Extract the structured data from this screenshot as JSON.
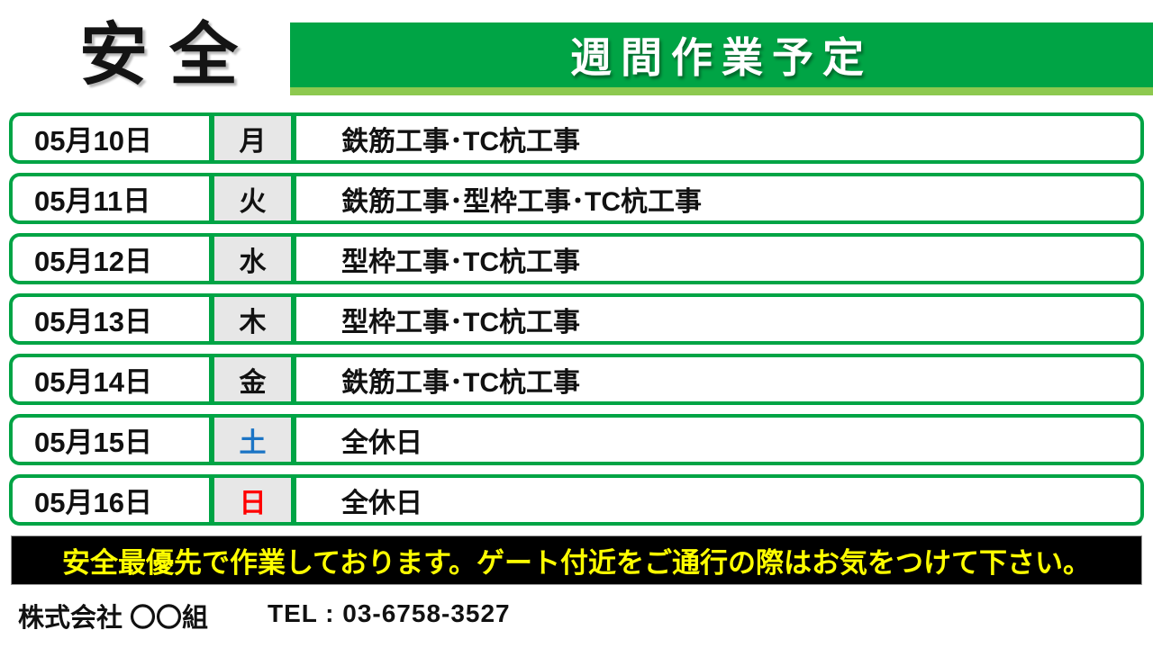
{
  "logo": {
    "left_char": "安",
    "right_char": "全",
    "cross_color": "#00A445"
  },
  "banner": {
    "title": "週間作業予定",
    "bg_color": "#00A445",
    "stripe_color": "#8DC94F",
    "text_color": "#FFFFFF"
  },
  "schedule": {
    "rows": [
      {
        "date": "05月10日",
        "day": "月",
        "day_color": "#111111",
        "work": "鉄筋工事･TC杭工事"
      },
      {
        "date": "05月11日",
        "day": "火",
        "day_color": "#111111",
        "work": "鉄筋工事･型枠工事･TC杭工事"
      },
      {
        "date": "05月12日",
        "day": "水",
        "day_color": "#111111",
        "work": "型枠工事･TC杭工事"
      },
      {
        "date": "05月13日",
        "day": "木",
        "day_color": "#111111",
        "work": "型枠工事･TC杭工事"
      },
      {
        "date": "05月14日",
        "day": "金",
        "day_color": "#111111",
        "work": "鉄筋工事･TC杭工事"
      },
      {
        "date": "05月15日",
        "day": "土",
        "day_color": "#1B74C5",
        "work": "全休日"
      },
      {
        "date": "05月16日",
        "day": "日",
        "day_color": "#FF0000",
        "work": "全休日"
      }
    ],
    "row_border_color": "#00A445",
    "day_cell_bg": "#E7E7E7"
  },
  "notice": {
    "text": "安全最優先で作業しております。ゲート付近をご通行の際はお気をつけて下さい。",
    "bg_color": "#000000",
    "text_color": "#FFFF00"
  },
  "footer": {
    "company": "株式会社 〇〇組",
    "tel": "TEL : 03-6758-3527"
  }
}
